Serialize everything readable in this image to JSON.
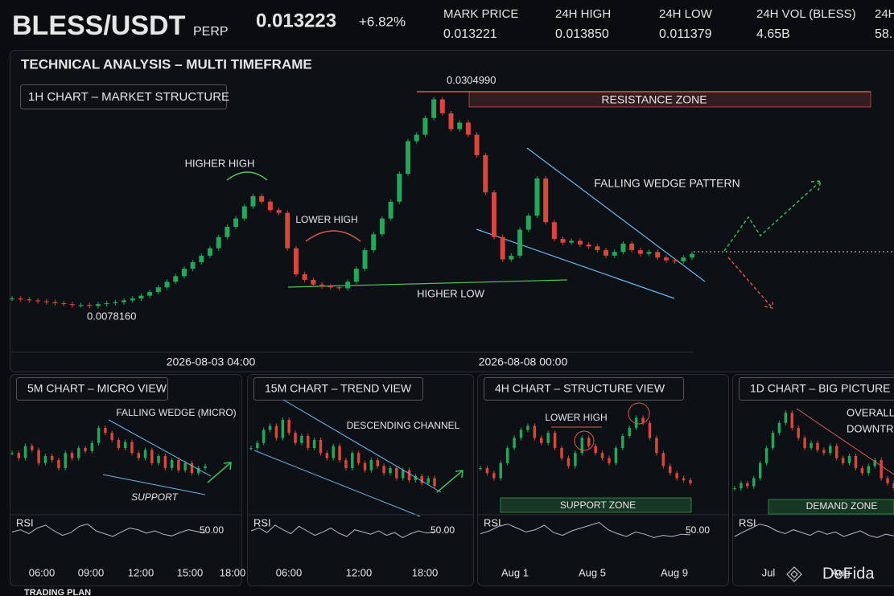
{
  "header": {
    "pair": "BLESS/USDT",
    "perp": "PERP",
    "price": "0.013223",
    "change": "+6.82%",
    "stats": [
      {
        "label": "MARK PRICE",
        "value": "0.013221"
      },
      {
        "label": "24H HIGH",
        "value": "0.013850"
      },
      {
        "label": "24H LOW",
        "value": "0.011379"
      },
      {
        "label": "24H VOL (BLESS)",
        "value": "4.65B"
      },
      {
        "label": "24H",
        "value": "58."
      }
    ]
  },
  "main": {
    "title": "TECHNICAL ANALYSIS – MULTI TIMEFRAME",
    "chart_label": "1H CHART – MARKET STRUCTURE",
    "high": {
      "value": 0.030499,
      "label": "0.0304990"
    },
    "low": {
      "value": 0.007816,
      "label": "0.0078160"
    },
    "annotations": {
      "resistance": "RESISTANCE ZONE",
      "higher_high": "HIGHER HIGH",
      "lower_high": "LOWER HIGH",
      "higher_low": "HIGHER LOW",
      "wedge": "FALLING WEDGE PATTERN"
    },
    "x_labels": [
      "2026-08-03 04:00",
      "2026-08-08 00:00"
    ],
    "ylim": [
      0.0055,
      0.0335
    ],
    "values": [
      0.0086,
      0.0085,
      0.0084,
      0.0083,
      0.0082,
      0.0081,
      0.008,
      0.0079,
      0.0079,
      0.0078,
      0.008,
      0.0081,
      0.0082,
      0.0084,
      0.0086,
      0.0089,
      0.0093,
      0.0098,
      0.0104,
      0.011,
      0.0118,
      0.0125,
      0.0132,
      0.014,
      0.0152,
      0.0163,
      0.0172,
      0.0185,
      0.0196,
      0.019,
      0.0181,
      0.0178,
      0.014,
      0.0112,
      0.0106,
      0.0101,
      0.0099,
      0.0098,
      0.0097,
      0.0104,
      0.0118,
      0.0138,
      0.0155,
      0.0172,
      0.019,
      0.022,
      0.0255,
      0.0262,
      0.028,
      0.03,
      0.0285,
      0.0268,
      0.0275,
      0.0262,
      0.024,
      0.02,
      0.0152,
      0.0128,
      0.0132,
      0.016,
      0.0175,
      0.0215,
      0.0168,
      0.015,
      0.0146,
      0.0148,
      0.0144,
      0.0142,
      0.0138,
      0.0132,
      0.0136,
      0.0145,
      0.0138,
      0.0134,
      0.0136,
      0.013,
      0.0127,
      0.0126,
      0.013,
      0.0134
    ]
  },
  "panels": [
    {
      "title": "5M CHART – MICRO VIEW",
      "annotations": [
        "FALLING WEDGE (MICRO)",
        "SUPPORT"
      ],
      "ylim": [
        0,
        100
      ],
      "values": [
        55,
        50,
        62,
        58,
        45,
        52,
        48,
        40,
        55,
        50,
        60,
        57,
        65,
        80,
        75,
        68,
        60,
        66,
        55,
        50,
        58,
        45,
        52,
        40,
        48,
        38,
        45,
        35,
        40,
        42
      ],
      "rsi": {
        "label": "RSI",
        "ylim": [
          0,
          100
        ],
        "yticks": [
          {
            "value": 50,
            "label": "50.00"
          }
        ],
        "values": [
          48,
          52,
          45,
          55,
          60,
          50,
          42,
          47,
          58,
          62,
          50,
          45,
          40,
          48,
          55,
          52,
          46,
          50,
          44,
          41,
          47,
          52,
          49,
          46
        ]
      },
      "x_labels": [
        "06:00",
        "09:00",
        "12:00",
        "15:00",
        "18:00"
      ]
    },
    {
      "title": "15M CHART – TREND VIEW",
      "annotations": [
        "DESCENDING CHANNEL"
      ],
      "ylim": [
        0,
        100
      ],
      "values": [
        60,
        65,
        78,
        82,
        70,
        88,
        75,
        65,
        72,
        60,
        68,
        55,
        50,
        62,
        48,
        40,
        55,
        45,
        38,
        48,
        42,
        35,
        40,
        30,
        38,
        28,
        32,
        25,
        30,
        22
      ],
      "rsi": {
        "label": "RSI",
        "ylim": [
          0,
          100
        ],
        "yticks": [
          {
            "value": 50,
            "label": "50.00"
          }
        ],
        "values": [
          50,
          55,
          47,
          60,
          52,
          45,
          58,
          50,
          42,
          48,
          55,
          46,
          40,
          52,
          48,
          44,
          50,
          42,
          47,
          38,
          45,
          50,
          46,
          48
        ]
      },
      "x_labels": [
        "06:00",
        "12:00",
        "18:00"
      ]
    },
    {
      "title": "4H CHART – STRUCTURE VIEW",
      "annotations": [
        "LOWER HIGH",
        "SUPPORT ZONE"
      ],
      "ylim": [
        0,
        100
      ],
      "values": [
        40,
        35,
        30,
        45,
        60,
        70,
        78,
        82,
        70,
        65,
        75,
        60,
        50,
        42,
        55,
        70,
        62,
        55,
        50,
        45,
        60,
        72,
        80,
        90,
        85,
        70,
        55,
        42,
        35,
        30,
        28,
        25
      ],
      "rsi": {
        "label": "RSI",
        "ylim": [
          0,
          100
        ],
        "yticks": [
          {
            "value": 50,
            "label": "50.00"
          }
        ],
        "values": [
          45,
          50,
          58,
          62,
          55,
          48,
          52,
          60,
          47,
          42,
          50,
          55,
          60,
          65,
          52,
          45,
          40,
          48,
          44,
          38,
          42,
          40,
          44,
          43
        ]
      },
      "x_labels": [
        "Aug 1",
        "Aug 5",
        "Aug 9"
      ]
    },
    {
      "title": "1D CHART – BIG PICTURE",
      "annotations": [
        "OVERALL",
        "DOWNTRE",
        "DEMAND ZONE"
      ],
      "ylim": [
        0,
        100
      ],
      "values": [
        20,
        25,
        22,
        30,
        45,
        60,
        75,
        85,
        95,
        80,
        70,
        60,
        65,
        58,
        55,
        62,
        50,
        45,
        52,
        40,
        35,
        42,
        48,
        30,
        25,
        20
      ],
      "rsi": {
        "label": "RSI",
        "ylim": [
          0,
          100
        ],
        "values": [
          40,
          48,
          55,
          62,
          58,
          50,
          45,
          52,
          47,
          42,
          50,
          44,
          48,
          40,
          45,
          50,
          42,
          38,
          44,
          41
        ]
      },
      "x_labels": [
        "Jul",
        "Aug"
      ]
    }
  ],
  "watermark": "DeFida",
  "footer": "TRADING PLAN"
}
